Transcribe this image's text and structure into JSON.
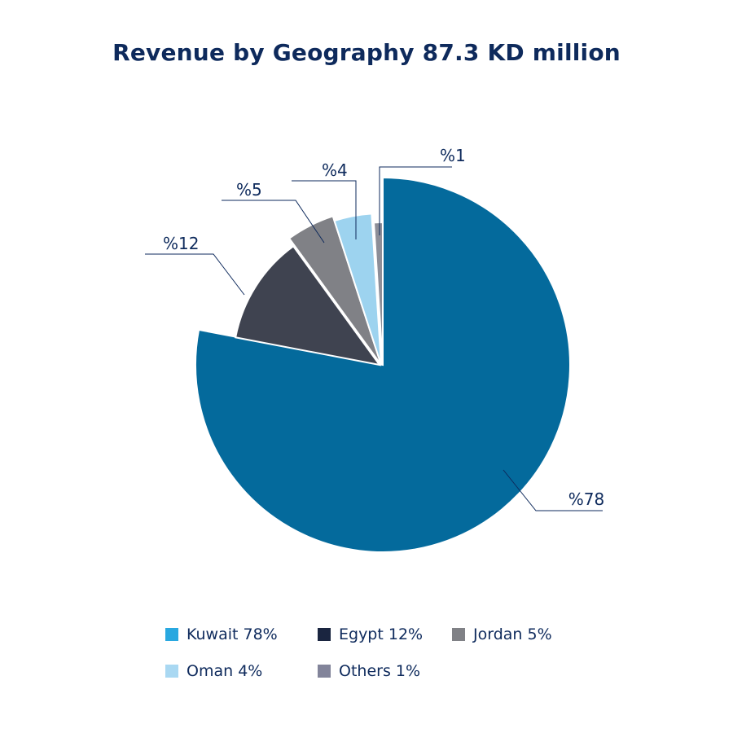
{
  "chart_data": {
    "type": "pie",
    "title": "Revenue by Geography 87.3 KD million",
    "slices": [
      {
        "name": "Kuwait",
        "value": 78,
        "label": "%78",
        "legend": "Kuwait 78%",
        "color": "#046a9c",
        "legend_color": "#29a8e0"
      },
      {
        "name": "Egypt",
        "value": 12,
        "label": "%12",
        "legend": "Egypt 12%",
        "color": "#3f4350",
        "legend_color": "#1a2540"
      },
      {
        "name": "Jordan",
        "value": 5,
        "label": "%5",
        "legend": "Jordan 5%",
        "color": "#808186",
        "legend_color": "#808186"
      },
      {
        "name": "Oman",
        "value": 4,
        "label": "%4",
        "legend": "Oman 4%",
        "color": "#9dd3ef",
        "legend_color": "#a9d8f2"
      },
      {
        "name": "Others",
        "value": 1,
        "label": "%1",
        "legend": "Others 1%",
        "color": "#8c8e98",
        "legend_color": "#82849a"
      }
    ],
    "legend_position": "bottom"
  }
}
